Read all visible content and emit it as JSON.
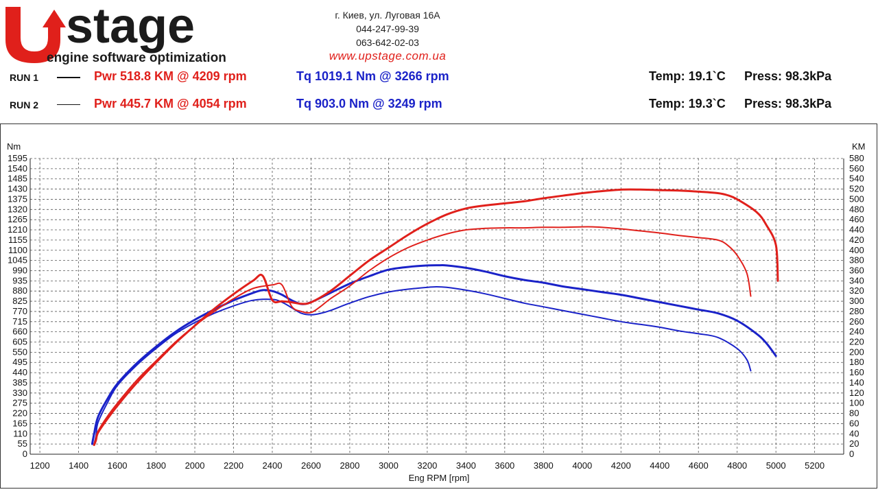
{
  "brand": {
    "logo_text": "stage",
    "tagline": "engine software optimization",
    "accent_color": "#e0201b",
    "text_color": "#1b1b1b"
  },
  "contact": {
    "address": "г. Киев, ул. Луговая 16А",
    "phone1": "044-247-99-39",
    "phone2": "063-642-02-03",
    "website": "www.upstage.com.ua"
  },
  "runs": [
    {
      "label": "RUN 1",
      "power": "Pwr  518.8 KM @ 4209 rpm",
      "torque": "Tq 1019.1 Nm @ 3266 rpm",
      "temp": "Temp: 19.1`C",
      "press": "Press: 98.3kPa"
    },
    {
      "label": "RUN 2",
      "power": "Pwr  445.7 KM @ 4054 rpm",
      "torque": "Tq 903.0 Nm @ 3249 rpm",
      "temp": "Temp: 19.3`C",
      "press": "Press: 98.3kPa"
    }
  ],
  "colors": {
    "power": "#e0201b",
    "torque": "#1a22c8",
    "grid": "#555555"
  },
  "chart_data": {
    "type": "line",
    "xlabel": "Eng RPM [rpm]",
    "ylabel_left": "Nm",
    "ylabel_right": "KM",
    "xlim": [
      1150,
      5350
    ],
    "ylim_left": [
      0,
      1595
    ],
    "ylim_right": [
      0,
      580
    ],
    "xticks": [
      1200,
      1400,
      1600,
      1800,
      2000,
      2200,
      2400,
      2600,
      2800,
      3000,
      3200,
      3400,
      3600,
      3800,
      4000,
      4200,
      4400,
      4600,
      4800,
      5000,
      5200
    ],
    "yticks_left": [
      0,
      55,
      110,
      165,
      220,
      275,
      330,
      385,
      440,
      495,
      550,
      605,
      660,
      715,
      770,
      825,
      880,
      935,
      990,
      1045,
      1100,
      1155,
      1210,
      1265,
      1320,
      1375,
      1430,
      1485,
      1540,
      1595
    ],
    "yticks_right": [
      0,
      20,
      40,
      60,
      80,
      100,
      120,
      140,
      160,
      180,
      200,
      220,
      240,
      260,
      280,
      300,
      320,
      340,
      360,
      380,
      400,
      420,
      440,
      460,
      480,
      500,
      520,
      540,
      560,
      580
    ],
    "grid": true,
    "series": [
      {
        "name": "Tq RUN 1",
        "axis": "left",
        "color": "#1a22c8",
        "width": 3,
        "x": [
          1470,
          1480,
          1500,
          1550,
          1600,
          1700,
          1800,
          1900,
          2000,
          2100,
          2200,
          2300,
          2350,
          2400,
          2450,
          2500,
          2550,
          2600,
          2700,
          2800,
          2900,
          3000,
          3100,
          3200,
          3266,
          3300,
          3400,
          3500,
          3600,
          3700,
          3800,
          3900,
          4000,
          4100,
          4200,
          4300,
          4400,
          4500,
          4600,
          4700,
          4800,
          4900,
          4950,
          5000
        ],
        "y": [
          55,
          110,
          200,
          300,
          380,
          490,
          580,
          660,
          725,
          780,
          830,
          870,
          885,
          880,
          860,
          830,
          810,
          820,
          870,
          920,
          960,
          995,
          1010,
          1018,
          1019,
          1018,
          1005,
          985,
          960,
          940,
          925,
          905,
          890,
          875,
          860,
          840,
          820,
          800,
          780,
          760,
          720,
          650,
          600,
          530
        ]
      },
      {
        "name": "Tq RUN 2",
        "axis": "left",
        "color": "#1a22c8",
        "width": 2,
        "x": [
          1480,
          1490,
          1500,
          1550,
          1600,
          1700,
          1800,
          1900,
          2000,
          2100,
          2200,
          2300,
          2400,
          2450,
          2500,
          2550,
          2600,
          2650,
          2700,
          2800,
          2900,
          3000,
          3100,
          3200,
          3249,
          3300,
          3400,
          3500,
          3600,
          3700,
          3800,
          3900,
          4000,
          4100,
          4200,
          4300,
          4400,
          4500,
          4600,
          4700,
          4800,
          4850,
          4870
        ],
        "y": [
          55,
          100,
          170,
          280,
          370,
          480,
          570,
          650,
          710,
          760,
          800,
          830,
          835,
          820,
          790,
          760,
          752,
          760,
          775,
          815,
          850,
          875,
          890,
          900,
          903,
          900,
          885,
          865,
          840,
          815,
          795,
          775,
          755,
          735,
          715,
          700,
          685,
          665,
          650,
          630,
          570,
          510,
          450
        ]
      },
      {
        "name": "Pwr RUN 1",
        "axis": "right",
        "color": "#e0201b",
        "width": 3,
        "x": [
          1480,
          1490,
          1500,
          1550,
          1600,
          1700,
          1800,
          1900,
          2000,
          2100,
          2200,
          2300,
          2350,
          2400,
          2450,
          2500,
          2550,
          2600,
          2700,
          2800,
          2900,
          3000,
          3100,
          3200,
          3300,
          3400,
          3500,
          3600,
          3700,
          3800,
          3900,
          4000,
          4100,
          4209,
          4300,
          4400,
          4500,
          4600,
          4700,
          4750,
          4800,
          4900,
          4950,
          5000,
          5010
        ],
        "y": [
          18,
          28,
          42,
          70,
          95,
          140,
          180,
          218,
          252,
          285,
          314,
          340,
          350,
          302,
          300,
          298,
          295,
          298,
          320,
          350,
          380,
          405,
          430,
          452,
          470,
          482,
          488,
          492,
          496,
          502,
          507,
          512,
          516,
          519,
          519,
          518,
          517,
          515,
          512,
          508,
          500,
          475,
          450,
          410,
          340
        ]
      },
      {
        "name": "Pwr RUN 2",
        "axis": "right",
        "color": "#e0201b",
        "width": 2,
        "x": [
          1480,
          1490,
          1500,
          1550,
          1600,
          1700,
          1800,
          1900,
          2000,
          2100,
          2200,
          2300,
          2400,
          2450,
          2500,
          2550,
          2600,
          2650,
          2700,
          2800,
          2900,
          3000,
          3100,
          3200,
          3300,
          3400,
          3500,
          3600,
          3700,
          3800,
          3900,
          4000,
          4054,
          4100,
          4200,
          4300,
          4400,
          4500,
          4600,
          4700,
          4750,
          4800,
          4850,
          4870
        ],
        "y": [
          20,
          32,
          45,
          75,
          100,
          145,
          183,
          220,
          252,
          280,
          305,
          325,
          332,
          332,
          290,
          280,
          278,
          290,
          305,
          330,
          360,
          385,
          405,
          420,
          432,
          440,
          443,
          444,
          444,
          445,
          445,
          446,
          446,
          445,
          442,
          438,
          434,
          429,
          425,
          420,
          410,
          390,
          355,
          310
        ]
      }
    ]
  }
}
